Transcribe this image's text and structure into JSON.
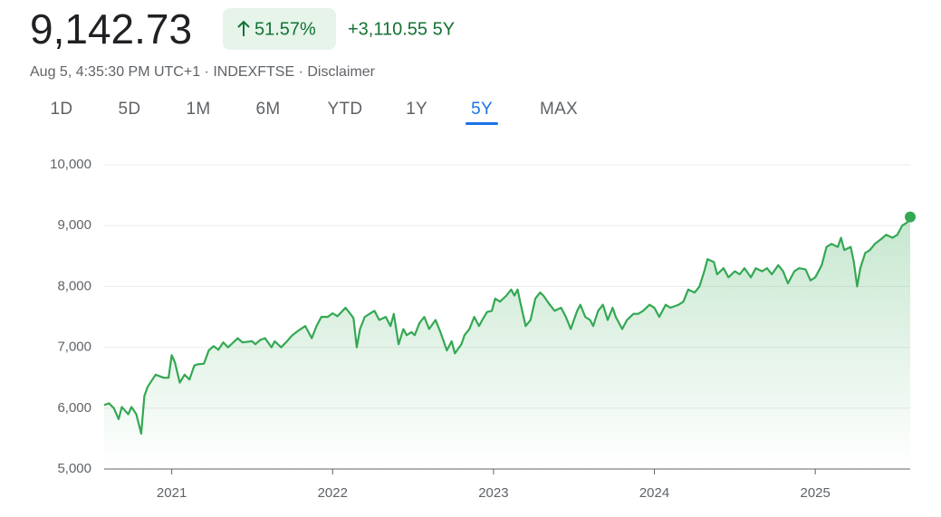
{
  "header": {
    "price": "9,142.73",
    "change_percent": "51.57%",
    "change_abs": "+3,110.55 5Y",
    "subtitle": "Aug 5, 4:35:30 PM UTC+1 · INDEXFTSE · Disclaimer"
  },
  "tabs": [
    "1D",
    "5D",
    "1M",
    "6M",
    "YTD",
    "1Y",
    "5Y",
    "MAX"
  ],
  "active_tab": 6,
  "chart_data": {
    "type": "line",
    "x": [
      2020.58,
      2020.61,
      2020.64,
      2020.67,
      2020.69,
      2020.73,
      2020.75,
      2020.78,
      2020.81,
      2020.83,
      2020.85,
      2020.9,
      2020.95,
      2020.98,
      2021.0,
      2021.02,
      2021.05,
      2021.08,
      2021.11,
      2021.14,
      2021.16,
      2021.2,
      2021.23,
      2021.26,
      2021.29,
      2021.32,
      2021.35,
      2021.39,
      2021.41,
      2021.44,
      2021.5,
      2021.52,
      2021.55,
      2021.58,
      2021.62,
      2021.64,
      2021.68,
      2021.72,
      2021.75,
      2021.79,
      2021.83,
      2021.87,
      2021.9,
      2021.93,
      2021.97,
      2022.0,
      2022.03,
      2022.08,
      2022.11,
      2022.13,
      2022.15,
      2022.17,
      2022.2,
      2022.23,
      2022.26,
      2022.29,
      2022.33,
      2022.36,
      2022.38,
      2022.41,
      2022.44,
      2022.46,
      2022.49,
      2022.51,
      2022.54,
      2022.57,
      2022.6,
      2022.64,
      2022.67,
      2022.71,
      2022.74,
      2022.76,
      2022.8,
      2022.82,
      2022.85,
      2022.88,
      2022.91,
      2022.93,
      2022.96,
      2022.99,
      2023.01,
      2023.04,
      2023.08,
      2023.11,
      2023.13,
      2023.15,
      2023.17,
      2023.2,
      2023.23,
      2023.26,
      2023.29,
      2023.31,
      2023.35,
      2023.38,
      2023.42,
      2023.45,
      2023.48,
      2023.52,
      2023.54,
      2023.57,
      2023.6,
      2023.62,
      2023.65,
      2023.68,
      2023.71,
      2023.74,
      2023.76,
      2023.8,
      2023.83,
      2023.87,
      2023.9,
      2023.93,
      2023.97,
      2024.0,
      2024.03,
      2024.07,
      2024.1,
      2024.15,
      2024.18,
      2024.21,
      2024.25,
      2024.28,
      2024.31,
      2024.33,
      2024.37,
      2024.39,
      2024.43,
      2024.46,
      2024.5,
      2024.53,
      2024.56,
      2024.6,
      2024.63,
      2024.67,
      2024.7,
      2024.73,
      2024.77,
      2024.8,
      2024.83,
      2024.87,
      2024.9,
      2024.94,
      2024.97,
      2025.0,
      2025.04,
      2025.07,
      2025.1,
      2025.14,
      2025.16,
      2025.18,
      2025.22,
      2025.24,
      2025.26,
      2025.28,
      2025.31,
      2025.34,
      2025.37,
      2025.41,
      2025.44,
      2025.48,
      2025.51,
      2025.54,
      2025.57,
      2025.59
    ],
    "series": [
      {
        "color": "#34a853",
        "values": [
          6050,
          6080,
          6000,
          5820,
          6020,
          5900,
          6020,
          5900,
          5580,
          6200,
          6350,
          6550,
          6500,
          6500,
          6870,
          6750,
          6420,
          6550,
          6470,
          6700,
          6720,
          6730,
          6950,
          7020,
          6960,
          7080,
          7000,
          7100,
          7150,
          7080,
          7100,
          7050,
          7120,
          7150,
          7000,
          7100,
          7000,
          7110,
          7200,
          7280,
          7350,
          7150,
          7350,
          7500,
          7500,
          7560,
          7510,
          7650,
          7550,
          7480,
          7000,
          7300,
          7500,
          7550,
          7600,
          7450,
          7500,
          7350,
          7550,
          7050,
          7300,
          7200,
          7250,
          7200,
          7400,
          7500,
          7300,
          7450,
          7250,
          6950,
          7100,
          6900,
          7050,
          7200,
          7300,
          7500,
          7350,
          7450,
          7580,
          7600,
          7800,
          7750,
          7850,
          7950,
          7850,
          7950,
          7700,
          7350,
          7450,
          7800,
          7900,
          7850,
          7700,
          7600,
          7650,
          7500,
          7300,
          7600,
          7700,
          7500,
          7450,
          7350,
          7600,
          7700,
          7450,
          7650,
          7500,
          7300,
          7450,
          7550,
          7550,
          7600,
          7700,
          7650,
          7500,
          7700,
          7650,
          7700,
          7750,
          7950,
          7900,
          8000,
          8250,
          8450,
          8400,
          8200,
          8300,
          8150,
          8250,
          8200,
          8300,
          8150,
          8300,
          8250,
          8300,
          8200,
          8350,
          8250,
          8050,
          8250,
          8300,
          8280,
          8100,
          8150,
          8350,
          8650,
          8700,
          8650,
          8800,
          8600,
          8650,
          8400,
          8000,
          8300,
          8550,
          8600,
          8700,
          8780,
          8850,
          8800,
          8850,
          9000,
          9050,
          9142.73
        ]
      }
    ],
    "xlim": [
      2020.58,
      2025.59
    ],
    "xticks": [
      2021,
      2022,
      2023,
      2024,
      2025
    ],
    "ylim": [
      5000,
      10000
    ],
    "yticks": [
      {
        "value": 5000,
        "label": "5,000"
      },
      {
        "value": 6000,
        "label": "6,000"
      },
      {
        "value": 7000,
        "label": "7,000"
      },
      {
        "value": 8000,
        "label": "8,000"
      },
      {
        "value": 9000,
        "label": "9,000"
      },
      {
        "value": 10000,
        "label": "10,000"
      }
    ],
    "grid": true
  }
}
